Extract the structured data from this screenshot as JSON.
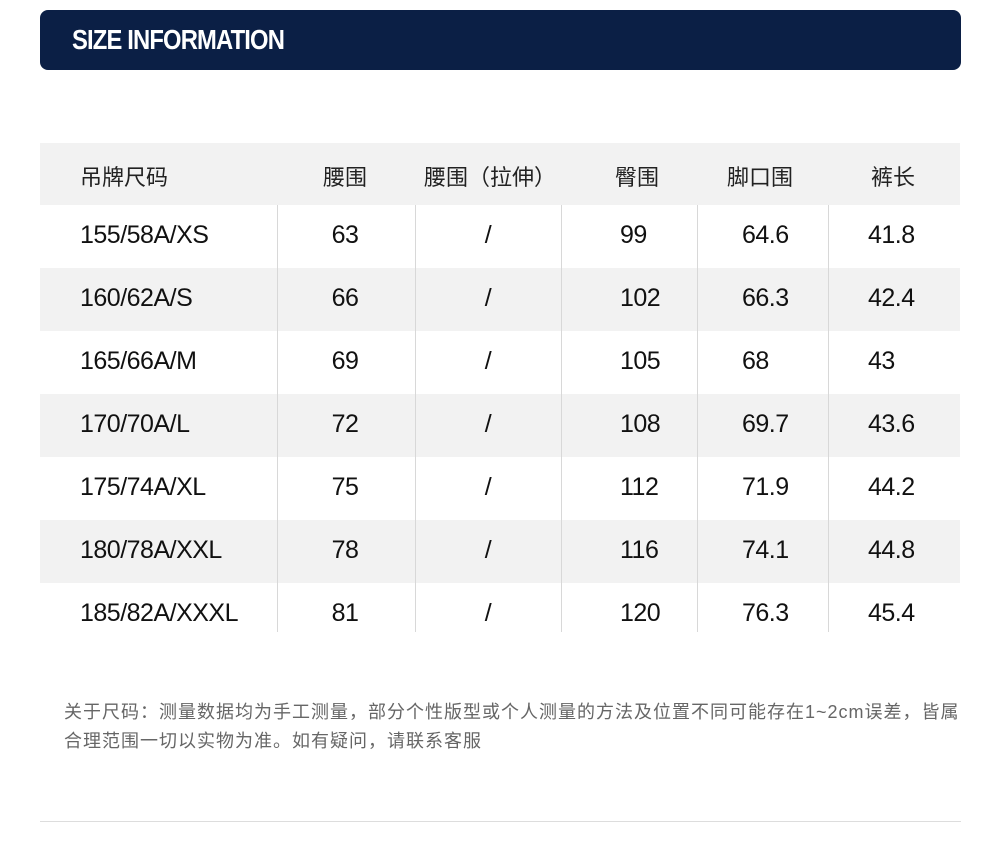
{
  "header": {
    "title": "SIZE INFORMATION"
  },
  "table": {
    "columns": [
      "吊牌尺码",
      "腰围",
      "腰围（拉伸）",
      "臀围",
      "脚口围",
      "裤长"
    ],
    "rows": [
      [
        "155/58A/XS",
        63,
        "/",
        99,
        64.6,
        41.8
      ],
      [
        "160/62A/S",
        66,
        "/",
        102,
        66.3,
        42.4
      ],
      [
        "165/66A/M",
        69,
        "/",
        105,
        68,
        43
      ],
      [
        "170/70A/L",
        72,
        "/",
        108,
        69.7,
        43.6
      ],
      [
        "175/74A/XL",
        75,
        "/",
        112,
        71.9,
        44.2
      ],
      [
        "180/78A/XXL",
        78,
        "/",
        116,
        74.1,
        44.8
      ],
      [
        "185/82A/XXXL",
        81,
        "/",
        120,
        76.3,
        45.4
      ]
    ]
  },
  "note": "关于尺码：测量数据均为手工测量，部分个性版型或个人测量的方法及位置不同可能存在1~2cm误差，皆属合理范围一切以实物为准。如有疑问，请联系客服"
}
